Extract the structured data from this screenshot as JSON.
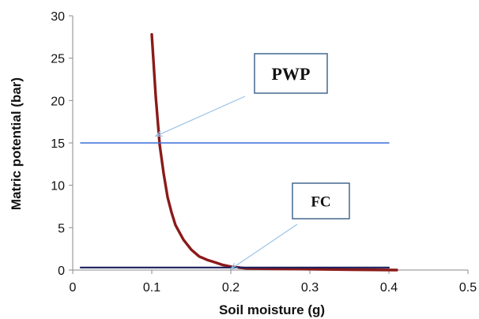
{
  "chart_data": {
    "type": "line",
    "xlabel": "Soil moisture (g)",
    "ylabel": "Matric potential (bar)",
    "xlim": [
      0,
      0.5
    ],
    "ylim": [
      0,
      30
    ],
    "xticks": [
      0,
      0.1,
      0.2,
      0.3,
      0.4,
      0.5
    ],
    "yticks": [
      0,
      5,
      10,
      15,
      20,
      25,
      30
    ],
    "grid": false,
    "legend": "none",
    "series": [
      {
        "color": "#8B1A1A",
        "x": [
          0.1,
          0.105,
          0.11,
          0.115,
          0.12,
          0.125,
          0.13,
          0.14,
          0.15,
          0.16,
          0.17,
          0.18,
          0.19,
          0.2,
          0.21,
          0.22,
          0.25,
          0.3,
          0.35,
          0.41
        ],
        "y": [
          27.8,
          20.5,
          14.8,
          11.4,
          8.6,
          6.8,
          5.3,
          3.6,
          2.4,
          1.6,
          1.2,
          0.9,
          0.6,
          0.4,
          0.3,
          0.2,
          0.15,
          0.1,
          0.05,
          0.0
        ]
      },
      {
        "color": "#3A6FD8",
        "x": [
          0.01,
          0.4
        ],
        "y": [
          15,
          15
        ]
      },
      {
        "color": "#1A1F5C",
        "x": [
          0.01,
          0.4
        ],
        "y": [
          0.3,
          0.3
        ]
      }
    ],
    "annotations": [
      {
        "text": "PWP",
        "arrow_to": [
          0.105,
          15.8
        ]
      },
      {
        "text": "FC",
        "arrow_to": [
          0.2,
          0.1
        ]
      }
    ]
  }
}
